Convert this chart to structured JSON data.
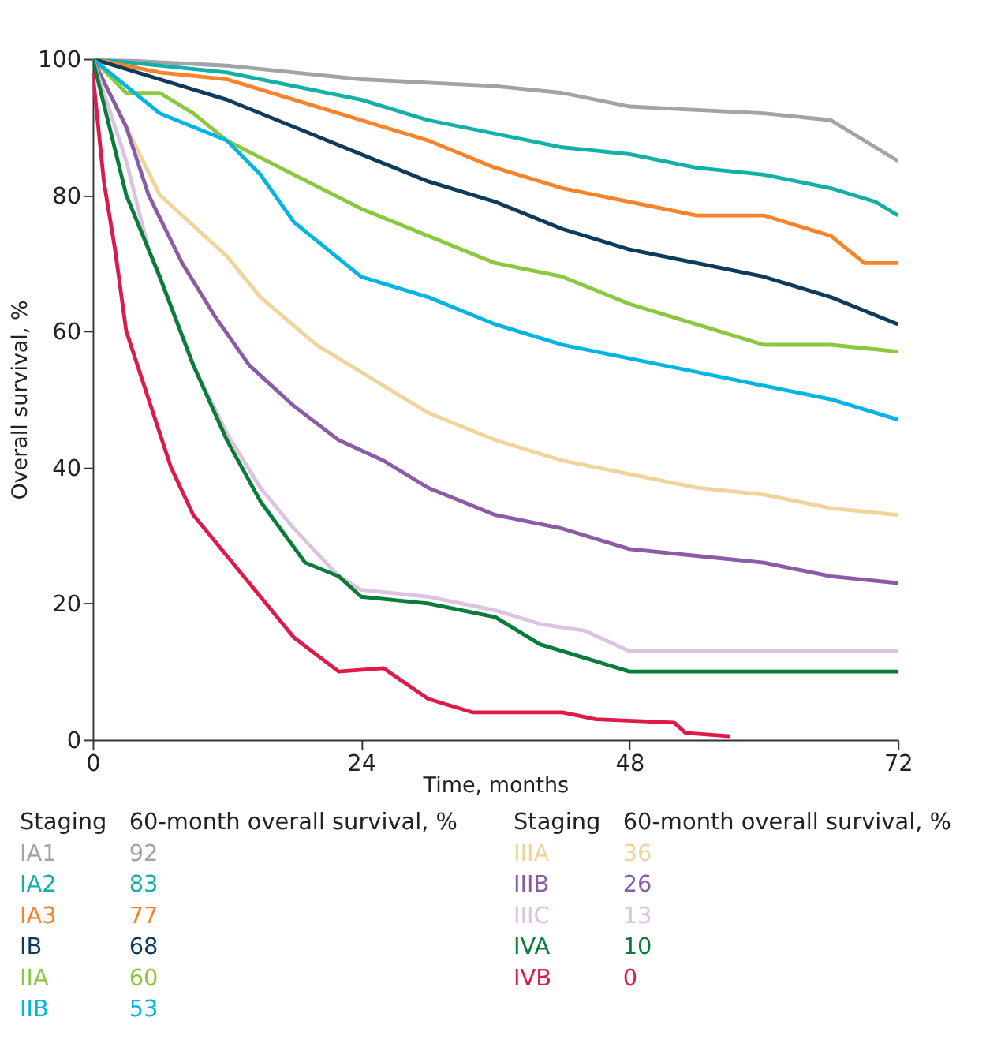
{
  "chart_data": {
    "type": "line",
    "xlabel": "Time, months",
    "ylabel": "Overall survival, %",
    "xlim": [
      0,
      72
    ],
    "xticks": [
      0,
      24,
      48,
      72
    ],
    "ylim": [
      0,
      100
    ],
    "yticks": [
      0,
      20,
      40,
      60,
      80,
      100
    ],
    "grid": false,
    "legend": "bottom",
    "legend_title": "Staging",
    "line_style": "solid",
    "marker": "none",
    "annotations": [
      "60-month overall survival, %",
      "92",
      "83",
      "77",
      "68",
      "60",
      "53",
      "36",
      "26",
      "13",
      "10",
      "0"
    ],
    "series": [
      {
        "name": "IA1",
        "color": "#a0a4a8",
        "x": [
          0,
          12,
          18,
          24,
          30,
          36,
          42,
          48,
          54,
          60,
          66,
          70,
          72
        ],
        "values": [
          100,
          99,
          98,
          97,
          96.5,
          96,
          95,
          93,
          92.5,
          92,
          91,
          87,
          85
        ]
      },
      {
        "name": "IA2",
        "color": "#13b0aa",
        "x": [
          0,
          6,
          12,
          18,
          24,
          30,
          36,
          42,
          48,
          54,
          60,
          66,
          70,
          72
        ],
        "values": [
          100,
          99,
          98,
          96,
          94,
          91,
          89,
          87,
          86,
          84,
          83,
          81,
          79,
          77
        ]
      },
      {
        "name": "IA3",
        "color": "#f7842a",
        "x": [
          0,
          6,
          12,
          18,
          24,
          30,
          36,
          42,
          48,
          54,
          60,
          66,
          69,
          72
        ],
        "values": [
          100,
          98,
          97,
          94,
          91,
          88,
          84,
          81,
          79,
          77,
          77,
          74,
          70,
          70
        ]
      },
      {
        "name": "IB",
        "color": "#0d3b5e",
        "x": [
          0,
          6,
          12,
          18,
          24,
          30,
          36,
          42,
          48,
          54,
          60,
          66,
          72
        ],
        "values": [
          100,
          97,
          94,
          90,
          86,
          82,
          79,
          75,
          72,
          70,
          68,
          65,
          61
        ]
      },
      {
        "name": "IIA",
        "color": "#8dc63f",
        "x": [
          0,
          3,
          6,
          9,
          12,
          18,
          24,
          30,
          36,
          42,
          48,
          54,
          60,
          66,
          72
        ],
        "values": [
          100,
          95,
          95,
          92,
          88,
          83,
          78,
          74,
          70,
          68,
          64,
          61,
          58,
          58,
          57
        ]
      },
      {
        "name": "IIB",
        "color": "#00b5e2",
        "x": [
          0,
          3,
          6,
          12,
          15,
          18,
          24,
          30,
          36,
          42,
          48,
          54,
          60,
          66,
          72
        ],
        "values": [
          100,
          96,
          92,
          88,
          83,
          76,
          68,
          65,
          61,
          58,
          56,
          54,
          52,
          50,
          47
        ]
      },
      {
        "name": "IIIA",
        "color": "#f0d49a",
        "x": [
          0,
          3,
          6,
          12,
          15,
          20,
          24,
          30,
          36,
          42,
          48,
          54,
          60,
          66,
          72
        ],
        "values": [
          100,
          90,
          80,
          71,
          65,
          58,
          54,
          48,
          44,
          41,
          39,
          37,
          36,
          34,
          33
        ]
      },
      {
        "name": "IIIB",
        "color": "#8a5ca8",
        "x": [
          0,
          3,
          5,
          8,
          11,
          14,
          18,
          22,
          26,
          30,
          36,
          42,
          48,
          54,
          60,
          66,
          72
        ],
        "values": [
          100,
          90,
          80,
          70,
          62,
          55,
          49,
          44,
          41,
          37,
          33,
          31,
          28,
          27,
          26,
          24,
          23
        ]
      },
      {
        "name": "IIIC",
        "color": "#dcc3df",
        "x": [
          0,
          3,
          5,
          9,
          12,
          15,
          18,
          22,
          24,
          30,
          36,
          40,
          44,
          48,
          72
        ],
        "values": [
          100,
          85,
          72,
          55,
          45,
          37,
          31,
          24,
          22,
          21,
          19,
          17,
          16,
          13,
          13
        ]
      },
      {
        "name": "IVA",
        "color": "#0a7c3a",
        "x": [
          0,
          3,
          6,
          9,
          12,
          15,
          19,
          22,
          24,
          30,
          36,
          40,
          44,
          48,
          72
        ],
        "values": [
          100,
          80,
          68,
          55,
          44,
          35,
          26,
          24,
          21,
          20,
          18,
          14,
          12,
          10,
          10
        ]
      },
      {
        "name": "IVB",
        "color": "#e0194b",
        "x": [
          0,
          1,
          2,
          3,
          5,
          7,
          9,
          12,
          15,
          18,
          20,
          22,
          26,
          30,
          34,
          38,
          42,
          45,
          52,
          53,
          57
        ],
        "values": [
          98,
          82,
          72,
          60,
          50,
          40,
          33,
          27,
          21,
          15,
          12.5,
          10,
          10.5,
          6,
          4,
          4,
          4,
          3,
          2.5,
          1,
          0.5
        ]
      }
    ]
  }
}
